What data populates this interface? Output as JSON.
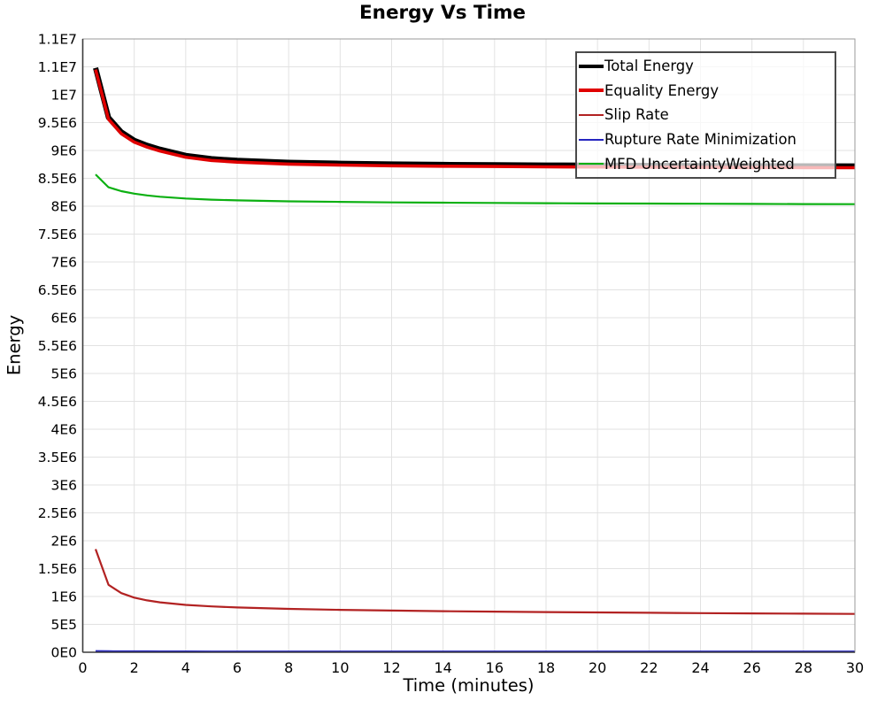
{
  "title": "Energy Vs Time",
  "axes": {
    "x_label": "Time (minutes)",
    "y_label": "Energy"
  },
  "legend": {
    "position": "top-right",
    "entries": [
      {
        "label": "Total Energy",
        "color": "#000000",
        "thickness": 4
      },
      {
        "label": "Equality Energy",
        "color": "#e00000",
        "thickness": 4
      },
      {
        "label": "Slip Rate",
        "color": "#b22222",
        "thickness": 2
      },
      {
        "label": "Rupture Rate Minimization",
        "color": "#2525c0",
        "thickness": 2
      },
      {
        "label": "MFD UncertaintyWeighted",
        "color": "#0cb012",
        "thickness": 2
      }
    ]
  },
  "colors": {
    "grid": "#e2e2e2",
    "plot_border": "#9a9a9a",
    "axis_line": "#3c3c3c",
    "background": "#ffffff"
  },
  "chart_data": {
    "type": "line",
    "title": "Energy Vs Time",
    "xlabel": "Time (minutes)",
    "ylabel": "Energy",
    "xlim": [
      0,
      30
    ],
    "ylim": [
      0,
      11000000
    ],
    "grid": true,
    "legend_position": "top-right",
    "x_ticks": [
      0,
      2,
      4,
      6,
      8,
      10,
      12,
      14,
      16,
      18,
      20,
      22,
      24,
      26,
      28,
      30
    ],
    "y_ticks": [
      {
        "value": 0,
        "label": "0E0"
      },
      {
        "value": 500000,
        "label": "5E5"
      },
      {
        "value": 1000000,
        "label": "1E6"
      },
      {
        "value": 1500000,
        "label": "1.5E6"
      },
      {
        "value": 2000000,
        "label": "2E6"
      },
      {
        "value": 2500000,
        "label": "2.5E6"
      },
      {
        "value": 3000000,
        "label": "3E6"
      },
      {
        "value": 3500000,
        "label": "3.5E6"
      },
      {
        "value": 4000000,
        "label": "4E6"
      },
      {
        "value": 4500000,
        "label": "4.5E6"
      },
      {
        "value": 5000000,
        "label": "5E6"
      },
      {
        "value": 5500000,
        "label": "5.5E6"
      },
      {
        "value": 6000000,
        "label": "6E6"
      },
      {
        "value": 6500000,
        "label": "6.5E6"
      },
      {
        "value": 7000000,
        "label": "7E6"
      },
      {
        "value": 7500000,
        "label": "7.5E6"
      },
      {
        "value": 8000000,
        "label": "8E6"
      },
      {
        "value": 8500000,
        "label": "8.5E6"
      },
      {
        "value": 9000000,
        "label": "9E6"
      },
      {
        "value": 9500000,
        "label": "9.5E6"
      },
      {
        "value": 10000000,
        "label": "1E7"
      },
      {
        "value": 10500000,
        "label": "1.1E7"
      },
      {
        "value": 11000000,
        "label": "1.1E7"
      }
    ],
    "x": [
      0.5,
      1,
      1.5,
      2,
      2.5,
      3,
      4,
      5,
      6,
      8,
      10,
      12,
      14,
      16,
      18,
      20,
      22,
      24,
      26,
      28,
      30
    ],
    "series": [
      {
        "name": "Total Energy",
        "color": "#000000",
        "stroke_width": 6,
        "values": [
          10480000,
          9590000,
          9330000,
          9180000,
          9090000,
          9020000,
          8910000,
          8850000,
          8820000,
          8785000,
          8768000,
          8756000,
          8748000,
          8742000,
          8737000,
          8733000,
          8730000,
          8727000,
          8724000,
          8722000,
          8720000
        ]
      },
      {
        "name": "Equality Energy",
        "color": "#e00000",
        "stroke_width": 3.6,
        "values": [
          10450000,
          9560000,
          9300000,
          9150000,
          9060000,
          8990000,
          8880000,
          8820000,
          8790000,
          8755000,
          8738000,
          8726000,
          8718000,
          8712000,
          8707000,
          8703000,
          8700000,
          8697000,
          8694000,
          8692000,
          8690000
        ]
      },
      {
        "name": "Slip Rate",
        "color": "#b22222",
        "stroke_width": 2.2,
        "values": [
          1850000,
          1210000,
          1060000,
          980000,
          930000,
          895000,
          850000,
          822000,
          803000,
          778000,
          760000,
          747000,
          737000,
          728000,
          721000,
          714000,
          708000,
          702000,
          697000,
          692000,
          688000
        ]
      },
      {
        "name": "Rupture Rate Minimization",
        "color": "#2525c0",
        "stroke_width": 2,
        "values": [
          22000,
          19000,
          18000,
          17000,
          17000,
          16000,
          16000,
          15000,
          15000,
          15000,
          15000,
          15000,
          15000,
          15000,
          15000,
          15000,
          15000,
          15000,
          15000,
          15000,
          15000
        ]
      },
      {
        "name": "MFD UncertaintyWeighted",
        "color": "#0cb012",
        "stroke_width": 2.2,
        "values": [
          8570000,
          8340000,
          8270000,
          8225000,
          8193000,
          8170000,
          8138000,
          8118000,
          8105000,
          8088000,
          8077000,
          8069000,
          8063000,
          8058000,
          8054000,
          8050000,
          8047000,
          8044000,
          8041000,
          8038000,
          8036000
        ]
      }
    ]
  }
}
